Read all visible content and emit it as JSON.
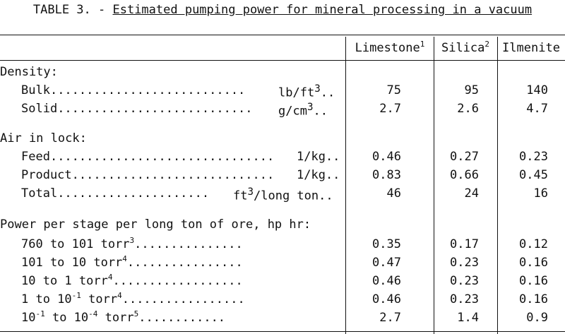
{
  "title": {
    "prefix": "TABLE 3. -",
    "caption": "Estimated pumping power for mineral processing in a vacuum"
  },
  "columns": [
    {
      "label": "Limestone",
      "note": "1"
    },
    {
      "label": "Silica",
      "note": "2"
    },
    {
      "label": "Ilmenite",
      "note": ""
    }
  ],
  "sections": {
    "density": {
      "heading": "Density:",
      "rows": [
        {
          "label": "Bulk",
          "unit": "lb/ft",
          "unit_sup": "3",
          "unit_end": "..",
          "values": [
            "75",
            "95",
            "140"
          ]
        },
        {
          "label": "Solid",
          "unit": "g/cm",
          "unit_sup": "3",
          "unit_end": "..",
          "values": [
            "2.7",
            "2.6",
            "4.7"
          ]
        }
      ]
    },
    "air": {
      "heading": "Air in lock:",
      "rows": [
        {
          "label": "Feed",
          "unit": "1/kg..",
          "values": [
            "0.46",
            "0.27",
            "0.23"
          ]
        },
        {
          "label": "Product",
          "unit": "1/kg..",
          "values": [
            "0.83",
            "0.66",
            "0.45"
          ]
        },
        {
          "label": "Total",
          "unit": "ft",
          "unit_sup": "3",
          "unit_end": "/long ton..",
          "values": [
            "46",
            "24",
            "16"
          ]
        }
      ]
    },
    "power": {
      "heading": "Power per stage per long ton of ore, hp hr:",
      "rows": [
        {
          "label": "760 to 101 torr",
          "note": "3",
          "values": [
            "0.35",
            "0.17",
            "0.12"
          ]
        },
        {
          "label": "101 to 10 torr",
          "note": "4",
          "values": [
            "0.47",
            "0.23",
            "0.16"
          ]
        },
        {
          "label": "10 to 1 torr",
          "note": "4",
          "values": [
            "0.46",
            "0.23",
            "0.16"
          ]
        },
        {
          "label": "1 to 10",
          "exp": "-1",
          "label_end": " torr",
          "note": "4",
          "values": [
            "0.46",
            "0.23",
            "0.16"
          ]
        },
        {
          "label": "10",
          "exp": "-1",
          "label_mid": " to 10",
          "exp2": "-4",
          "label_end": " torr",
          "note": "5",
          "values": [
            "2.7",
            "1.4",
            "0.9"
          ]
        }
      ]
    }
  }
}
